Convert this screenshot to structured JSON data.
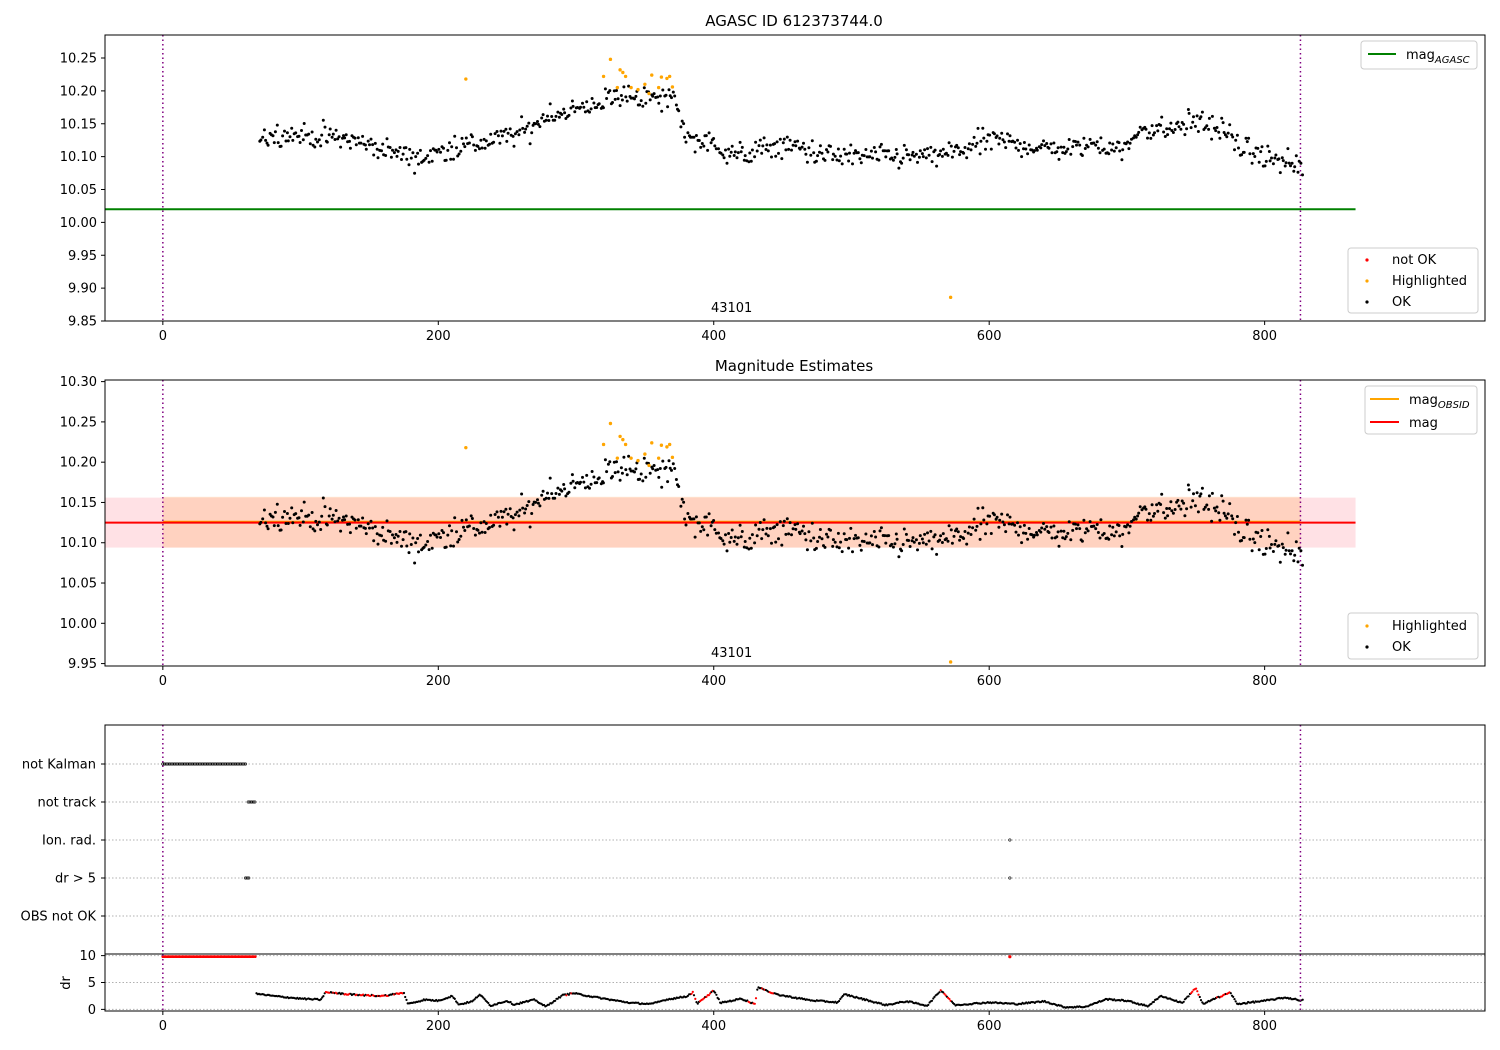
{
  "chart_data": [
    {
      "type": "scatter",
      "title": "AGASC ID 612373744.0",
      "xlim": [
        -42,
        960
      ],
      "ylim": [
        9.85,
        10.285
      ],
      "xticks": [
        0,
        200,
        400,
        600,
        800
      ],
      "yticks": [
        9.85,
        9.9,
        9.95,
        10.0,
        10.05,
        10.1,
        10.15,
        10.2,
        10.25
      ],
      "vlines": [
        0,
        826
      ],
      "obsid_label": {
        "text": "43101",
        "x": 413
      },
      "hlines": [
        {
          "name": "mag_AGASC",
          "y": 10.02,
          "x": [
            -42,
            866
          ],
          "color": "#008000"
        }
      ],
      "legend_lines": [
        {
          "label": "mag",
          "sub": "AGASC",
          "color": "#008000"
        }
      ],
      "legend_points": [
        {
          "label": "not OK",
          "color": "#ff0000"
        },
        {
          "label": "Highlighted",
          "color": "#ffa500"
        },
        {
          "label": "OK",
          "color": "#000000"
        }
      ],
      "highlighted": [
        [
          220,
          10.218
        ],
        [
          320,
          10.222
        ],
        [
          325,
          10.248
        ],
        [
          330,
          10.205
        ],
        [
          332,
          10.232
        ],
        [
          334,
          10.228
        ],
        [
          336,
          10.222
        ],
        [
          340,
          10.205
        ],
        [
          345,
          10.202
        ],
        [
          350,
          10.21
        ],
        [
          353,
          10.196
        ],
        [
          355,
          10.224
        ],
        [
          360,
          10.205
        ],
        [
          362,
          10.221
        ],
        [
          366,
          10.219
        ],
        [
          368,
          10.222
        ],
        [
          370,
          10.206
        ],
        [
          572,
          9.886
        ]
      ],
      "trend": [
        [
          70,
          10.13
        ],
        [
          90,
          10.135
        ],
        [
          110,
          10.13
        ],
        [
          130,
          10.128
        ],
        [
          150,
          10.118
        ],
        [
          170,
          10.105
        ],
        [
          190,
          10.098
        ],
        [
          210,
          10.115
        ],
        [
          230,
          10.12
        ],
        [
          250,
          10.13
        ],
        [
          265,
          10.14
        ],
        [
          280,
          10.165
        ],
        [
          300,
          10.17
        ],
        [
          320,
          10.185
        ],
        [
          340,
          10.195
        ],
        [
          360,
          10.185
        ],
        [
          372,
          10.19
        ],
        [
          380,
          10.13
        ],
        [
          400,
          10.118
        ],
        [
          420,
          10.1
        ],
        [
          440,
          10.115
        ],
        [
          460,
          10.115
        ],
        [
          480,
          10.102
        ],
        [
          500,
          10.1
        ],
        [
          520,
          10.1
        ],
        [
          540,
          10.1
        ],
        [
          560,
          10.1
        ],
        [
          580,
          10.11
        ],
        [
          600,
          10.125
        ],
        [
          620,
          10.12
        ],
        [
          640,
          10.112
        ],
        [
          660,
          10.112
        ],
        [
          680,
          10.12
        ],
        [
          700,
          10.11
        ],
        [
          710,
          10.145
        ],
        [
          730,
          10.14
        ],
        [
          750,
          10.155
        ],
        [
          770,
          10.14
        ],
        [
          785,
          10.11
        ],
        [
          800,
          10.1
        ],
        [
          826,
          10.085
        ]
      ],
      "scatter_sd": 0.017
    },
    {
      "type": "scatter",
      "title": "Magnitude Estimates",
      "xlim": [
        -42,
        960
      ],
      "ylim": [
        9.947,
        10.302
      ],
      "xticks": [
        0,
        200,
        400,
        600,
        800
      ],
      "yticks": [
        9.95,
        10.0,
        10.05,
        10.1,
        10.15,
        10.2,
        10.25,
        10.3
      ],
      "vlines": [
        0,
        826
      ],
      "obsid_label": {
        "text": "43101",
        "x": 413
      },
      "bands": [
        {
          "name": "mag band",
          "y": [
            10.094,
            10.156
          ],
          "x": [
            -42,
            866
          ],
          "color": "#ff9aaa",
          "opacity": 0.3
        },
        {
          "name": "mag_OBSID band",
          "y": [
            10.094,
            10.157
          ],
          "x": [
            0,
            826
          ],
          "color": "#ffb87a",
          "opacity": 0.35
        }
      ],
      "hlines": [
        {
          "name": "mag_OBSID",
          "y": 10.126,
          "x": [
            0,
            826
          ],
          "color": "#ffa500"
        },
        {
          "name": "mag",
          "y": 10.125,
          "x": [
            -42,
            866
          ],
          "color": "#ff0000"
        }
      ],
      "legend_lines": [
        {
          "label": "mag",
          "sub": "OBSID",
          "color": "#ffa500"
        },
        {
          "label": "mag",
          "sub": "",
          "color": "#ff0000"
        }
      ],
      "legend_points": [
        {
          "label": "Highlighted",
          "color": "#ffa500"
        },
        {
          "label": "OK",
          "color": "#000000"
        }
      ],
      "highlighted": [
        [
          220,
          10.218
        ],
        [
          320,
          10.222
        ],
        [
          325,
          10.248
        ],
        [
          330,
          10.205
        ],
        [
          332,
          10.232
        ],
        [
          334,
          10.228
        ],
        [
          336,
          10.222
        ],
        [
          340,
          10.205
        ],
        [
          345,
          10.202
        ],
        [
          350,
          10.21
        ],
        [
          353,
          10.196
        ],
        [
          355,
          10.224
        ],
        [
          360,
          10.205
        ],
        [
          362,
          10.221
        ],
        [
          366,
          10.219
        ],
        [
          368,
          10.222
        ],
        [
          370,
          10.206
        ],
        [
          572,
          9.952
        ]
      ],
      "trend": [
        [
          70,
          10.13
        ],
        [
          90,
          10.135
        ],
        [
          110,
          10.13
        ],
        [
          130,
          10.128
        ],
        [
          150,
          10.118
        ],
        [
          170,
          10.105
        ],
        [
          190,
          10.098
        ],
        [
          210,
          10.115
        ],
        [
          230,
          10.12
        ],
        [
          250,
          10.13
        ],
        [
          265,
          10.14
        ],
        [
          280,
          10.165
        ],
        [
          300,
          10.17
        ],
        [
          320,
          10.185
        ],
        [
          340,
          10.195
        ],
        [
          360,
          10.185
        ],
        [
          372,
          10.19
        ],
        [
          380,
          10.13
        ],
        [
          400,
          10.118
        ],
        [
          420,
          10.1
        ],
        [
          440,
          10.115
        ],
        [
          460,
          10.115
        ],
        [
          480,
          10.102
        ],
        [
          500,
          10.1
        ],
        [
          520,
          10.1
        ],
        [
          540,
          10.1
        ],
        [
          560,
          10.1
        ],
        [
          580,
          10.11
        ],
        [
          600,
          10.125
        ],
        [
          620,
          10.12
        ],
        [
          640,
          10.112
        ],
        [
          660,
          10.112
        ],
        [
          680,
          10.12
        ],
        [
          700,
          10.11
        ],
        [
          710,
          10.145
        ],
        [
          730,
          10.14
        ],
        [
          750,
          10.155
        ],
        [
          770,
          10.14
        ],
        [
          785,
          10.11
        ],
        [
          800,
          10.1
        ],
        [
          826,
          10.085
        ]
      ],
      "scatter_sd": 0.017
    },
    {
      "type": "scatter",
      "title": "",
      "xlim": [
        -42,
        960
      ],
      "flag_labels": [
        "not Kalman",
        "not track",
        "Ion. rad.",
        "dr > 5",
        "OBS not OK"
      ],
      "flag_points": [
        {
          "flag": "not Kalman",
          "x": [
            0,
            61
          ]
        },
        {
          "flag": "not track",
          "x": [
            62,
            68
          ]
        },
        {
          "flag": "Ion. rad.",
          "x": [
            615,
            615
          ]
        },
        {
          "flag": "dr > 5",
          "x": [
            60,
            63
          ]
        },
        {
          "flag": "dr > 5",
          "x": [
            615,
            615
          ]
        }
      ]
    },
    {
      "type": "scatter",
      "title": "",
      "ylabel": "dr",
      "xlim": [
        -42,
        960
      ],
      "ylim": [
        -0.3,
        10.3
      ],
      "xticks": [
        0,
        200,
        400,
        600,
        800
      ],
      "yticks": [
        0,
        5,
        10
      ],
      "vlines": [
        0,
        826
      ],
      "saturated": {
        "value": 10,
        "x": [
          0,
          68
        ]
      },
      "saturated_point": [
        615,
        9.8
      ],
      "red_ranges": [
        [
          117,
          175
        ],
        [
          293,
          298
        ],
        [
          383,
          400
        ],
        [
          425,
          445
        ],
        [
          563,
          573
        ],
        [
          745,
          752
        ],
        [
          765,
          775
        ]
      ],
      "dr_curve": [
        [
          68,
          2.9
        ],
        [
          80,
          2.5
        ],
        [
          100,
          2.0
        ],
        [
          115,
          1.8
        ],
        [
          118,
          3.2
        ],
        [
          140,
          2.7
        ],
        [
          160,
          2.5
        ],
        [
          175,
          3.1
        ],
        [
          178,
          1.0
        ],
        [
          190,
          1.8
        ],
        [
          200,
          1.6
        ],
        [
          210,
          2.5
        ],
        [
          215,
          0.9
        ],
        [
          225,
          1.5
        ],
        [
          230,
          2.8
        ],
        [
          238,
          0.7
        ],
        [
          250,
          1.6
        ],
        [
          255,
          0.9
        ],
        [
          270,
          1.8
        ],
        [
          278,
          0.5
        ],
        [
          290,
          2.6
        ],
        [
          298,
          3.0
        ],
        [
          320,
          2.0
        ],
        [
          340,
          1.2
        ],
        [
          355,
          1.0
        ],
        [
          365,
          1.8
        ],
        [
          380,
          2.4
        ],
        [
          385,
          3.2
        ],
        [
          388,
          1.0
        ],
        [
          400,
          3.5
        ],
        [
          405,
          1.2
        ],
        [
          420,
          2.0
        ],
        [
          430,
          1.0
        ],
        [
          432,
          4.2
        ],
        [
          445,
          2.8
        ],
        [
          470,
          1.7
        ],
        [
          490,
          1.3
        ],
        [
          495,
          2.8
        ],
        [
          510,
          1.8
        ],
        [
          525,
          0.8
        ],
        [
          540,
          1.5
        ],
        [
          555,
          0.7
        ],
        [
          565,
          3.6
        ],
        [
          575,
          0.8
        ],
        [
          600,
          1.3
        ],
        [
          620,
          1.0
        ],
        [
          640,
          1.5
        ],
        [
          655,
          0.4
        ],
        [
          670,
          0.5
        ],
        [
          685,
          1.9
        ],
        [
          700,
          1.6
        ],
        [
          715,
          0.6
        ],
        [
          725,
          2.5
        ],
        [
          740,
          1.2
        ],
        [
          750,
          4.0
        ],
        [
          755,
          1.0
        ],
        [
          775,
          3.2
        ],
        [
          780,
          1.0
        ],
        [
          800,
          1.6
        ],
        [
          815,
          2.2
        ],
        [
          826,
          1.7
        ]
      ]
    }
  ]
}
